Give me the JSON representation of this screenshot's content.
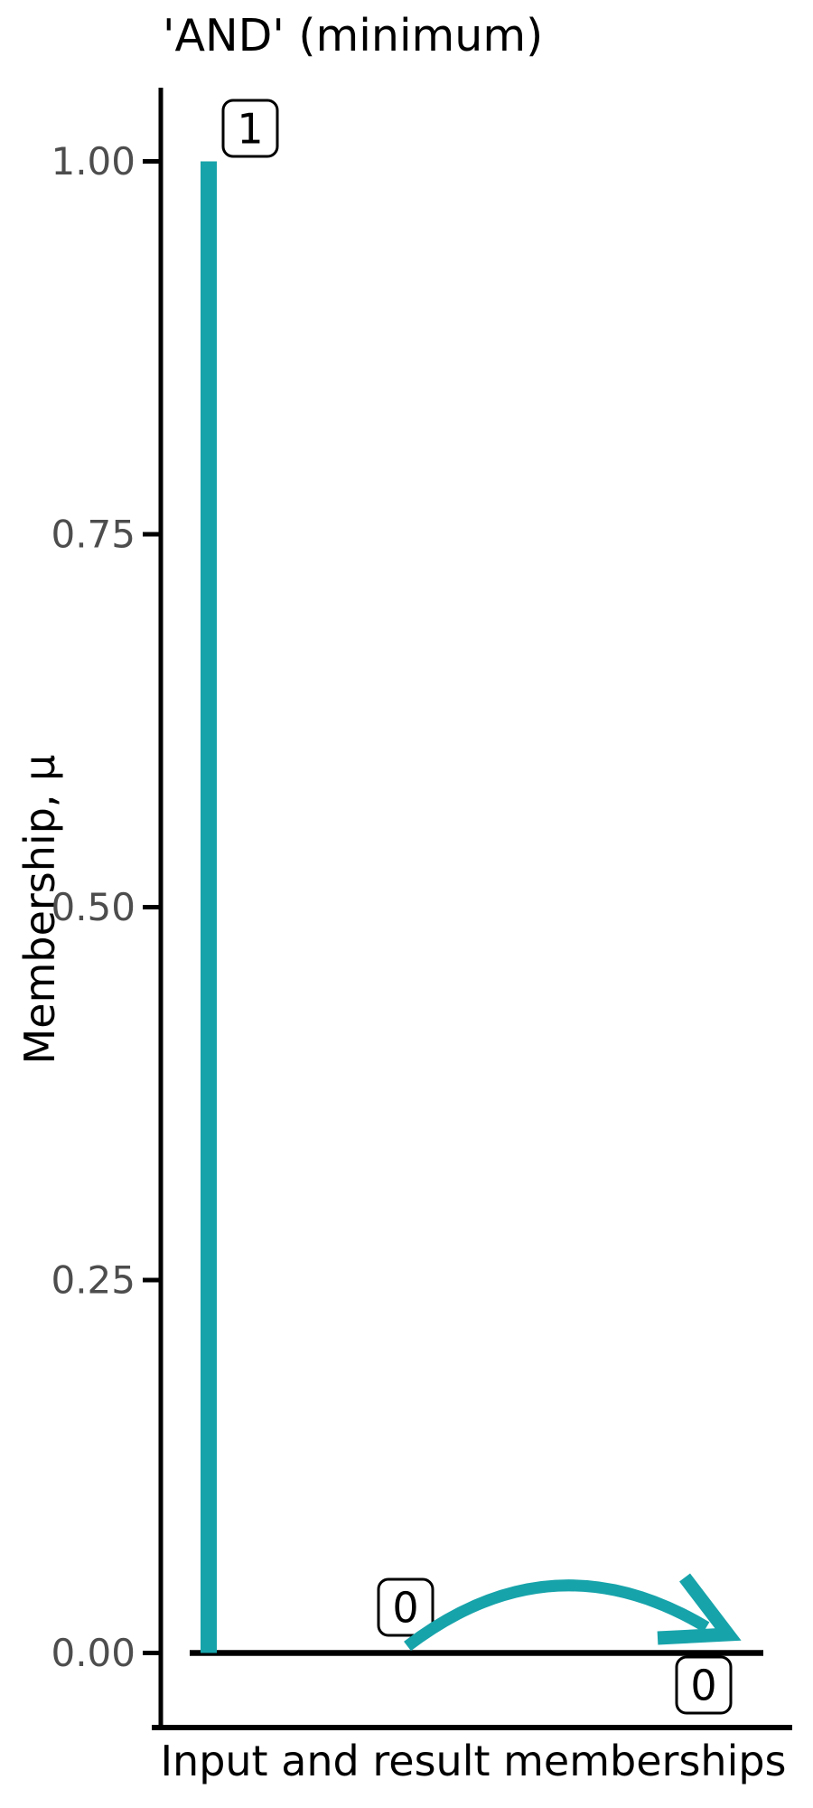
{
  "chart_data": {
    "type": "bar",
    "title": "'AND' (minimum)",
    "xlabel": "Input and result memberships",
    "ylabel": "Membership, μ",
    "ylim": [
      0,
      1
    ],
    "grid": false,
    "legend": false,
    "x_tick_labels": [],
    "yticks": [
      {
        "value": 1.0,
        "label": "1.00"
      },
      {
        "value": 0.75,
        "label": "0.75"
      },
      {
        "value": 0.5,
        "label": "0.50"
      },
      {
        "value": 0.25,
        "label": "0.25"
      },
      {
        "value": 0.0,
        "label": "0.00"
      }
    ],
    "bars": [
      {
        "value": 1,
        "data_label": "1",
        "color": "#17a3aa"
      }
    ],
    "zero_line": {
      "value": 0,
      "color": "#000000"
    },
    "annotations": [
      {
        "text": "1",
        "value": 1
      },
      {
        "text": "0",
        "value": 0
      },
      {
        "text": "0",
        "value": 0
      }
    ],
    "arrow": {
      "color": "#17a3aa",
      "direction": "right"
    },
    "colors": {
      "accent_teal": "#17a3aa",
      "axis": "#000000",
      "tick_label": "#4d4d4d",
      "annotation_box_fill": "#ffffff",
      "annotation_box_border": "#000000",
      "background": "#ffffff"
    }
  }
}
